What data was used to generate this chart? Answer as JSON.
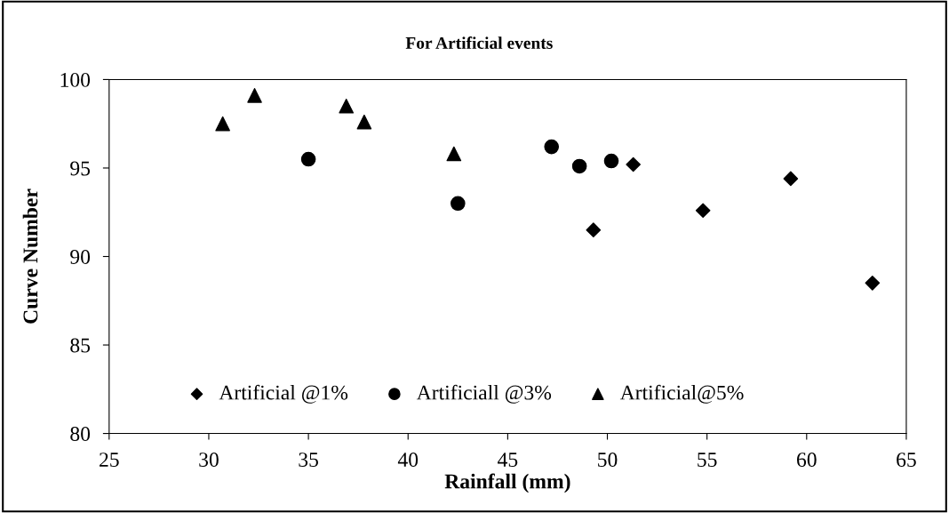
{
  "chart_data": {
    "type": "scatter",
    "title": "For Artificial events",
    "xlabel": "Rainfall (mm)",
    "ylabel": "Curve Number",
    "xlim": [
      25,
      65
    ],
    "xticks": [
      25,
      30,
      35,
      40,
      45,
      50,
      55,
      60,
      65
    ],
    "ylim": [
      80,
      100
    ],
    "yticks": [
      80,
      85,
      90,
      95,
      100
    ],
    "grid": false,
    "legend": "bottom left",
    "series": [
      {
        "name": "Artificial @1%",
        "color": "#000000",
        "marker": "diamond",
        "x": [
          51.3,
          49.3,
          54.8,
          59.2,
          63.3
        ],
        "values": [
          95.2,
          91.5,
          92.6,
          94.4,
          88.5
        ]
      },
      {
        "name": "Artificiall @3%",
        "color": "#000000",
        "marker": "circle",
        "x": [
          35.0,
          42.5,
          47.2,
          48.6,
          50.2
        ],
        "values": [
          95.5,
          93.0,
          96.2,
          95.1,
          95.4
        ]
      },
      {
        "name": "Artificial@5%",
        "color": "#000000",
        "marker": "triangle",
        "x": [
          30.7,
          32.3,
          36.9,
          37.8,
          42.3
        ],
        "values": [
          97.5,
          99.1,
          98.5,
          97.6,
          95.8
        ]
      }
    ]
  }
}
